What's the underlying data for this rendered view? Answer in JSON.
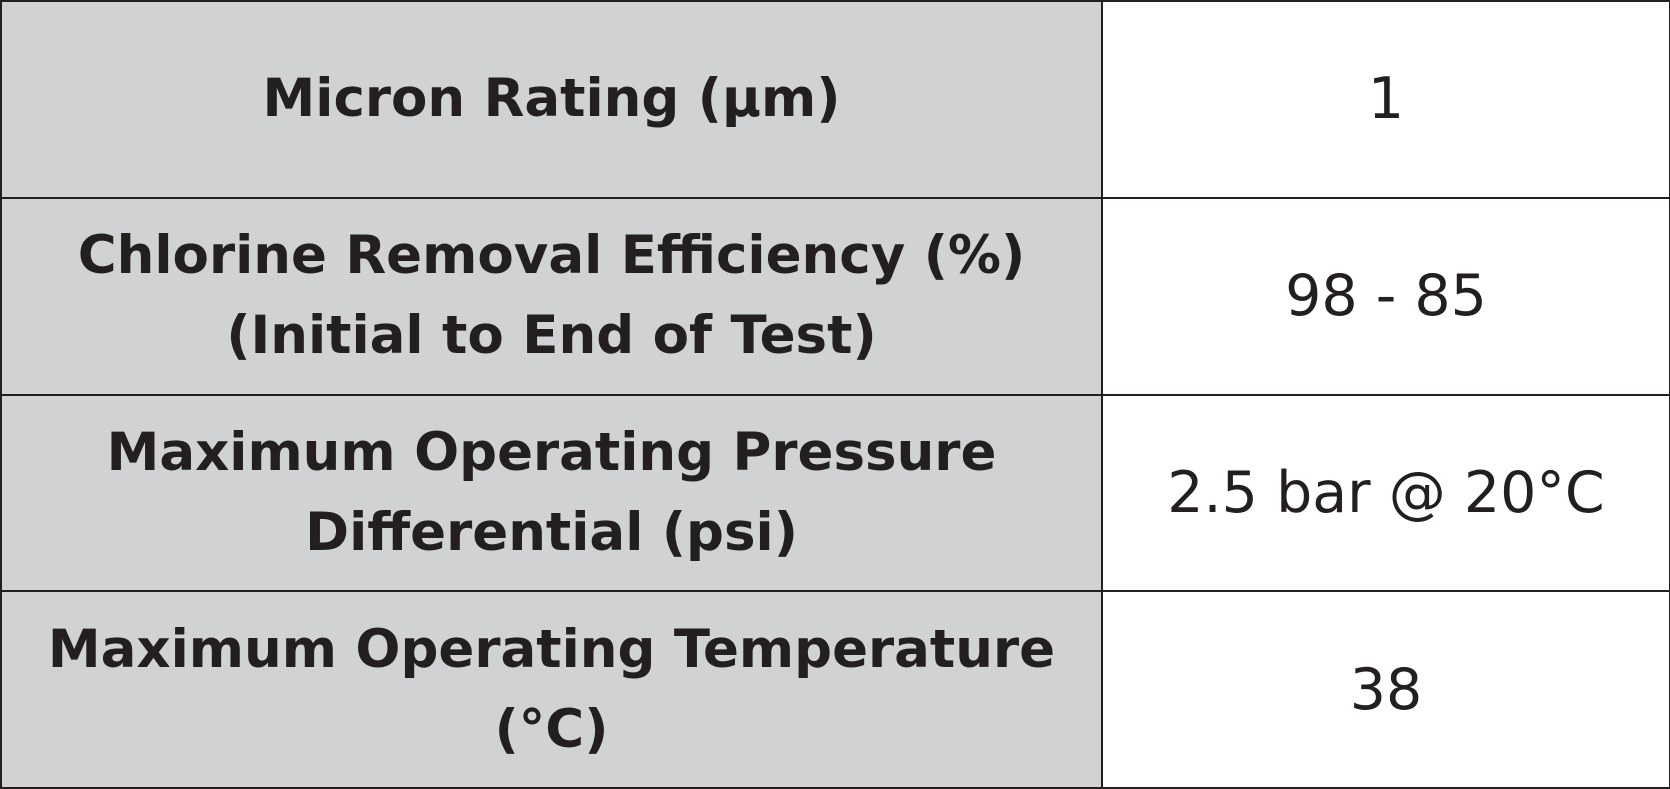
{
  "table": {
    "rows": [
      {
        "label_lines": [
          "Micron Rating (µm)"
        ],
        "value": "1"
      },
      {
        "label_lines": [
          "Chlorine Removal Efficiency (%)",
          "(Initial to End of Test)"
        ],
        "value": "98 - 85"
      },
      {
        "label_lines": [
          "Maximum Operating Pressure",
          "Differential (psi)"
        ],
        "value": "2.5 bar @ 20°C"
      },
      {
        "label_lines": [
          "Maximum Operating Temperature",
          "(°C)"
        ],
        "value": "38"
      }
    ]
  },
  "colors": {
    "label_background": "#d1d2d4",
    "value_background": "#ffffff",
    "text": "#231f20",
    "border": "#231f20"
  }
}
